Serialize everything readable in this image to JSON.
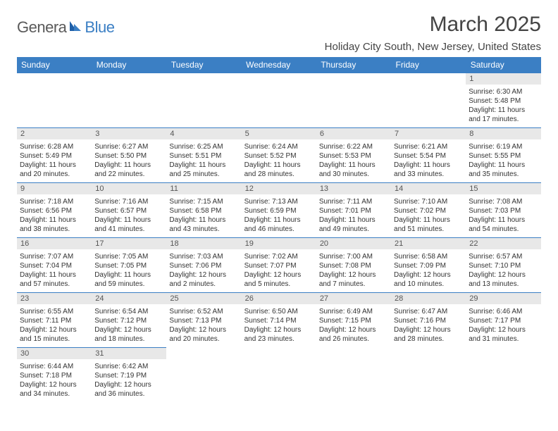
{
  "logo": {
    "part1": "Genera",
    "part2": "Blue"
  },
  "title": "March 2025",
  "location": "Holiday City South, New Jersey, United States",
  "colors": {
    "header_bg": "#3b7fc4",
    "header_text": "#ffffff",
    "daynum_bg": "#e8e8e8",
    "border": "#3b7fc4",
    "logo_gray": "#5a5a5a",
    "logo_blue": "#3b7fc4"
  },
  "weekdays": [
    "Sunday",
    "Monday",
    "Tuesday",
    "Wednesday",
    "Thursday",
    "Friday",
    "Saturday"
  ],
  "weeks": [
    [
      null,
      null,
      null,
      null,
      null,
      null,
      {
        "n": "1",
        "sr": "Sunrise: 6:30 AM",
        "ss": "Sunset: 5:48 PM",
        "d1": "Daylight: 11 hours",
        "d2": "and 17 minutes."
      }
    ],
    [
      {
        "n": "2",
        "sr": "Sunrise: 6:28 AM",
        "ss": "Sunset: 5:49 PM",
        "d1": "Daylight: 11 hours",
        "d2": "and 20 minutes."
      },
      {
        "n": "3",
        "sr": "Sunrise: 6:27 AM",
        "ss": "Sunset: 5:50 PM",
        "d1": "Daylight: 11 hours",
        "d2": "and 22 minutes."
      },
      {
        "n": "4",
        "sr": "Sunrise: 6:25 AM",
        "ss": "Sunset: 5:51 PM",
        "d1": "Daylight: 11 hours",
        "d2": "and 25 minutes."
      },
      {
        "n": "5",
        "sr": "Sunrise: 6:24 AM",
        "ss": "Sunset: 5:52 PM",
        "d1": "Daylight: 11 hours",
        "d2": "and 28 minutes."
      },
      {
        "n": "6",
        "sr": "Sunrise: 6:22 AM",
        "ss": "Sunset: 5:53 PM",
        "d1": "Daylight: 11 hours",
        "d2": "and 30 minutes."
      },
      {
        "n": "7",
        "sr": "Sunrise: 6:21 AM",
        "ss": "Sunset: 5:54 PM",
        "d1": "Daylight: 11 hours",
        "d2": "and 33 minutes."
      },
      {
        "n": "8",
        "sr": "Sunrise: 6:19 AM",
        "ss": "Sunset: 5:55 PM",
        "d1": "Daylight: 11 hours",
        "d2": "and 35 minutes."
      }
    ],
    [
      {
        "n": "9",
        "sr": "Sunrise: 7:18 AM",
        "ss": "Sunset: 6:56 PM",
        "d1": "Daylight: 11 hours",
        "d2": "and 38 minutes."
      },
      {
        "n": "10",
        "sr": "Sunrise: 7:16 AM",
        "ss": "Sunset: 6:57 PM",
        "d1": "Daylight: 11 hours",
        "d2": "and 41 minutes."
      },
      {
        "n": "11",
        "sr": "Sunrise: 7:15 AM",
        "ss": "Sunset: 6:58 PM",
        "d1": "Daylight: 11 hours",
        "d2": "and 43 minutes."
      },
      {
        "n": "12",
        "sr": "Sunrise: 7:13 AM",
        "ss": "Sunset: 6:59 PM",
        "d1": "Daylight: 11 hours",
        "d2": "and 46 minutes."
      },
      {
        "n": "13",
        "sr": "Sunrise: 7:11 AM",
        "ss": "Sunset: 7:01 PM",
        "d1": "Daylight: 11 hours",
        "d2": "and 49 minutes."
      },
      {
        "n": "14",
        "sr": "Sunrise: 7:10 AM",
        "ss": "Sunset: 7:02 PM",
        "d1": "Daylight: 11 hours",
        "d2": "and 51 minutes."
      },
      {
        "n": "15",
        "sr": "Sunrise: 7:08 AM",
        "ss": "Sunset: 7:03 PM",
        "d1": "Daylight: 11 hours",
        "d2": "and 54 minutes."
      }
    ],
    [
      {
        "n": "16",
        "sr": "Sunrise: 7:07 AM",
        "ss": "Sunset: 7:04 PM",
        "d1": "Daylight: 11 hours",
        "d2": "and 57 minutes."
      },
      {
        "n": "17",
        "sr": "Sunrise: 7:05 AM",
        "ss": "Sunset: 7:05 PM",
        "d1": "Daylight: 11 hours",
        "d2": "and 59 minutes."
      },
      {
        "n": "18",
        "sr": "Sunrise: 7:03 AM",
        "ss": "Sunset: 7:06 PM",
        "d1": "Daylight: 12 hours",
        "d2": "and 2 minutes."
      },
      {
        "n": "19",
        "sr": "Sunrise: 7:02 AM",
        "ss": "Sunset: 7:07 PM",
        "d1": "Daylight: 12 hours",
        "d2": "and 5 minutes."
      },
      {
        "n": "20",
        "sr": "Sunrise: 7:00 AM",
        "ss": "Sunset: 7:08 PM",
        "d1": "Daylight: 12 hours",
        "d2": "and 7 minutes."
      },
      {
        "n": "21",
        "sr": "Sunrise: 6:58 AM",
        "ss": "Sunset: 7:09 PM",
        "d1": "Daylight: 12 hours",
        "d2": "and 10 minutes."
      },
      {
        "n": "22",
        "sr": "Sunrise: 6:57 AM",
        "ss": "Sunset: 7:10 PM",
        "d1": "Daylight: 12 hours",
        "d2": "and 13 minutes."
      }
    ],
    [
      {
        "n": "23",
        "sr": "Sunrise: 6:55 AM",
        "ss": "Sunset: 7:11 PM",
        "d1": "Daylight: 12 hours",
        "d2": "and 15 minutes."
      },
      {
        "n": "24",
        "sr": "Sunrise: 6:54 AM",
        "ss": "Sunset: 7:12 PM",
        "d1": "Daylight: 12 hours",
        "d2": "and 18 minutes."
      },
      {
        "n": "25",
        "sr": "Sunrise: 6:52 AM",
        "ss": "Sunset: 7:13 PM",
        "d1": "Daylight: 12 hours",
        "d2": "and 20 minutes."
      },
      {
        "n": "26",
        "sr": "Sunrise: 6:50 AM",
        "ss": "Sunset: 7:14 PM",
        "d1": "Daylight: 12 hours",
        "d2": "and 23 minutes."
      },
      {
        "n": "27",
        "sr": "Sunrise: 6:49 AM",
        "ss": "Sunset: 7:15 PM",
        "d1": "Daylight: 12 hours",
        "d2": "and 26 minutes."
      },
      {
        "n": "28",
        "sr": "Sunrise: 6:47 AM",
        "ss": "Sunset: 7:16 PM",
        "d1": "Daylight: 12 hours",
        "d2": "and 28 minutes."
      },
      {
        "n": "29",
        "sr": "Sunrise: 6:46 AM",
        "ss": "Sunset: 7:17 PM",
        "d1": "Daylight: 12 hours",
        "d2": "and 31 minutes."
      }
    ],
    [
      {
        "n": "30",
        "sr": "Sunrise: 6:44 AM",
        "ss": "Sunset: 7:18 PM",
        "d1": "Daylight: 12 hours",
        "d2": "and 34 minutes."
      },
      {
        "n": "31",
        "sr": "Sunrise: 6:42 AM",
        "ss": "Sunset: 7:19 PM",
        "d1": "Daylight: 12 hours",
        "d2": "and 36 minutes."
      },
      null,
      null,
      null,
      null,
      null
    ]
  ]
}
